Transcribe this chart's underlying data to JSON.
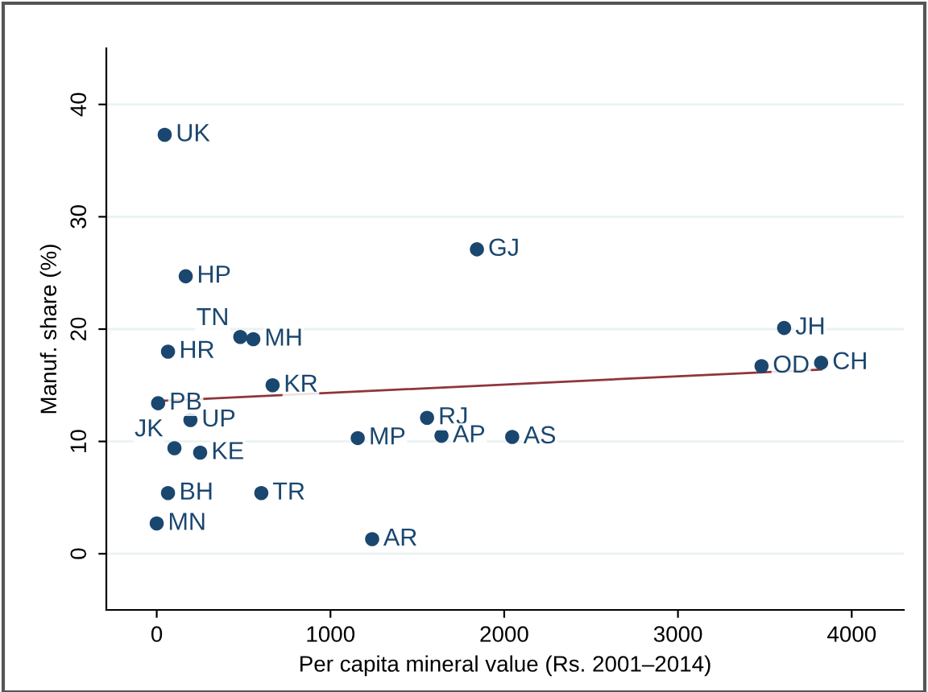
{
  "chart_data": {
    "type": "scatter",
    "xlabel": "Per capita mineral value (Rs. 2001–2014)",
    "ylabel": "Manuf. share (%)",
    "xlim": [
      -290,
      4300
    ],
    "ylim": [
      -5,
      45
    ],
    "xticks": [
      0,
      1000,
      2000,
      3000,
      4000
    ],
    "yticks": [
      0,
      10,
      20,
      30,
      40
    ],
    "grid": "y",
    "series": [
      {
        "marker": "circle",
        "color": "#1a476f",
        "x": [
          46,
          167,
          65,
          481,
          556,
          667,
          8,
          194,
          102,
          250,
          65,
          0,
          602,
          1157,
          1240,
          1556,
          1639,
          2046,
          1843,
          3611,
          3481,
          3824
        ],
        "values": [
          37.3,
          24.7,
          18.0,
          19.3,
          19.1,
          15.0,
          13.4,
          11.9,
          9.4,
          9.0,
          5.4,
          2.7,
          5.4,
          10.3,
          1.3,
          12.1,
          10.5,
          10.4,
          27.1,
          20.1,
          16.7,
          17.0
        ]
      },
      {
        "type": "line",
        "color": "#90353b",
        "x": [
          8,
          3824
        ],
        "values": [
          13.6,
          16.4
        ]
      }
    ],
    "annotations": [
      {
        "text": "UK",
        "x": 46,
        "y": 37.3
      },
      {
        "text": "HP",
        "x": 167,
        "y": 24.7
      },
      {
        "text": "HR",
        "x": 65,
        "y": 18.0
      },
      {
        "text": "TN",
        "x": 481,
        "y": 19.3
      },
      {
        "text": "MH",
        "x": 556,
        "y": 19.1
      },
      {
        "text": "KR",
        "x": 667,
        "y": 15.0
      },
      {
        "text": "PB",
        "x": 8,
        "y": 13.4
      },
      {
        "text": "UP",
        "x": 194,
        "y": 11.9
      },
      {
        "text": "JK",
        "x": 102,
        "y": 9.4
      },
      {
        "text": "KE",
        "x": 250,
        "y": 9.0
      },
      {
        "text": "BH",
        "x": 65,
        "y": 5.4
      },
      {
        "text": "MN",
        "x": 0,
        "y": 2.7
      },
      {
        "text": "TR",
        "x": 602,
        "y": 5.4
      },
      {
        "text": "MP",
        "x": 1157,
        "y": 10.3
      },
      {
        "text": "AR",
        "x": 1240,
        "y": 1.3
      },
      {
        "text": "RJ",
        "x": 1556,
        "y": 12.1
      },
      {
        "text": "AP",
        "x": 1639,
        "y": 10.5
      },
      {
        "text": "AS",
        "x": 2046,
        "y": 10.4
      },
      {
        "text": "GJ",
        "x": 1843,
        "y": 27.1
      },
      {
        "text": "JH",
        "x": 3611,
        "y": 20.1
      },
      {
        "text": "OD",
        "x": 3481,
        "y": 16.7
      },
      {
        "text": "CH",
        "x": 3824,
        "y": 17.0
      }
    ]
  }
}
